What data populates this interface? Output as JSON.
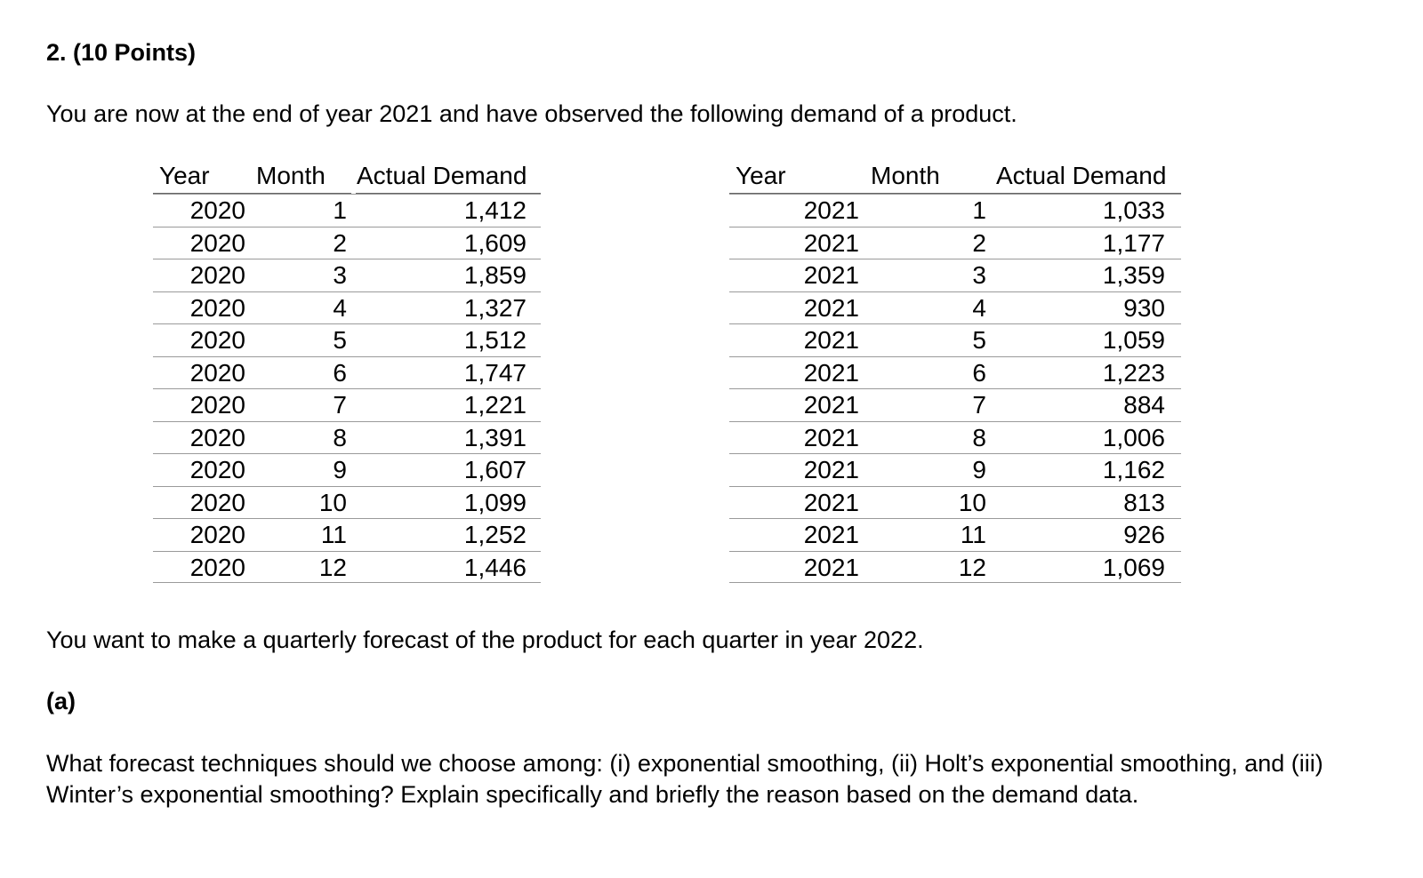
{
  "question": {
    "heading": "2. (10 Points)",
    "intro": "You are now at the end of year 2021 and have observed the following demand of a product.",
    "followup": "You want to make a quarterly forecast of the product for each quarter in year 2022.",
    "part_a_label": "(a)",
    "part_a_text": "What forecast techniques should we choose among: (i) exponential smoothing, (ii) Holt’s exponential smoothing, and (iii) Winter’s exponential smoothing?  Explain specifically and briefly the reason based on the demand data."
  },
  "tables": [
    {
      "headers": [
        "Year",
        "Month",
        "Actual Demand"
      ],
      "rows": [
        [
          "2020",
          "1",
          "1,412"
        ],
        [
          "2020",
          "2",
          "1,609"
        ],
        [
          "2020",
          "3",
          "1,859"
        ],
        [
          "2020",
          "4",
          "1,327"
        ],
        [
          "2020",
          "5",
          "1,512"
        ],
        [
          "2020",
          "6",
          "1,747"
        ],
        [
          "2020",
          "7",
          "1,221"
        ],
        [
          "2020",
          "8",
          "1,391"
        ],
        [
          "2020",
          "9",
          "1,607"
        ],
        [
          "2020",
          "10",
          "1,099"
        ],
        [
          "2020",
          "11",
          "1,252"
        ],
        [
          "2020",
          "12",
          "1,446"
        ]
      ]
    },
    {
      "headers": [
        "Year",
        "Month",
        "Actual Demand"
      ],
      "rows": [
        [
          "2021",
          "1",
          "1,033"
        ],
        [
          "2021",
          "2",
          "1,177"
        ],
        [
          "2021",
          "3",
          "1,359"
        ],
        [
          "2021",
          "4",
          "930"
        ],
        [
          "2021",
          "5",
          "1,059"
        ],
        [
          "2021",
          "6",
          "1,223"
        ],
        [
          "2021",
          "7",
          "884"
        ],
        [
          "2021",
          "8",
          "1,006"
        ],
        [
          "2021",
          "9",
          "1,162"
        ],
        [
          "2021",
          "10",
          "813"
        ],
        [
          "2021",
          "11",
          "926"
        ],
        [
          "2021",
          "12",
          "1,069"
        ]
      ]
    }
  ]
}
